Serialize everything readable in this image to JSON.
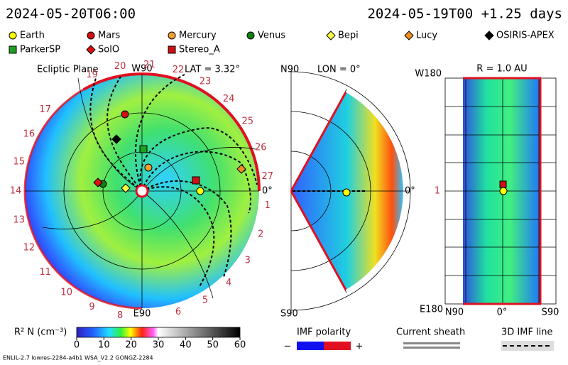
{
  "header": {
    "left": "2024-05-20T06:00",
    "right": "2024-05-19T00 +1.25 days"
  },
  "legend": [
    {
      "label": "Earth",
      "color": "#ffff00",
      "shape": "circle"
    },
    {
      "label": "Mars",
      "color": "#d01010",
      "shape": "circle"
    },
    {
      "label": "Mercury",
      "color": "#f0a030",
      "shape": "circle"
    },
    {
      "label": "Venus",
      "color": "#108010",
      "shape": "circle"
    },
    {
      "label": "Bepi",
      "color": "#ffff40",
      "shape": "diamond"
    },
    {
      "label": "Lucy",
      "color": "#f09020",
      "shape": "diamond"
    },
    {
      "label": "OSIRIS-APEX",
      "color": "#000000",
      "shape": "diamond"
    },
    {
      "label": "ParkerSP",
      "color": "#20a020",
      "shape": "square"
    },
    {
      "label": "SolO",
      "color": "#e01010",
      "shape": "diamond"
    },
    {
      "label": "Stereo_A",
      "color": "#d01010",
      "shape": "square"
    }
  ],
  "ecliptic": {
    "title": "Ecliptic Plane",
    "lat": "LAT = 3.32°",
    "top": "W90",
    "bottom": "E90",
    "right": "0°",
    "sector_labels": [
      "1",
      "2",
      "3",
      "4",
      "5",
      "6",
      null,
      "8",
      "9",
      "10",
      "11",
      "12",
      "13",
      "14",
      "15",
      "16",
      "17",
      null,
      "19",
      "20",
      "21",
      "22",
      "23",
      "24",
      "25",
      "26",
      "27"
    ]
  },
  "meridional": {
    "top": "N90",
    "title": "LON = 0°",
    "bottom": "S90",
    "right": "0°"
  },
  "radial": {
    "title": "R = 1.0 AU",
    "top_left": "W180",
    "middle_left": "1",
    "bottom_left": "E180",
    "bottom_labels": [
      "N90",
      "0°",
      "S90"
    ]
  },
  "colorbar": {
    "label": "R² N (cm⁻³)",
    "ticks": [
      "0",
      "10",
      "20",
      "30",
      "40",
      "50",
      "60"
    ]
  },
  "imf": {
    "title": "IMF polarity",
    "minus": "−",
    "plus": "+"
  },
  "sheath": "Current sheath",
  "imf_line": "3D IMF line",
  "footer": "ENLIL-2.7 lowres-2284-a4b1 WSA_V2.2 GONGZ-2284"
}
